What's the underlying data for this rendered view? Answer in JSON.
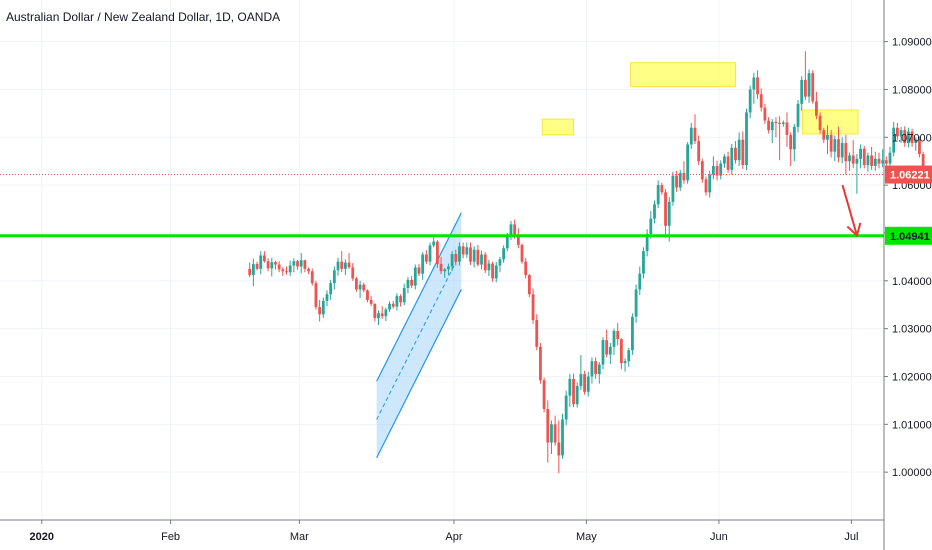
{
  "chart_data": {
    "type": "candlestick",
    "title": "Australian Dollar / New Zealand Dollar, 1D, OANDA",
    "y_ticks": [
      "1.09000",
      "1.08000",
      "1.07000",
      "1.06000",
      "1.05000",
      "1.04000",
      "1.03000",
      "1.02000",
      "1.01000",
      "1.00000"
    ],
    "y_tick_values": [
      1.09,
      1.08,
      1.07,
      1.06,
      1.05,
      1.04,
      1.03,
      1.02,
      1.01,
      1.0
    ],
    "ylim": [
      0.99,
      1.0987
    ],
    "x_ticks": [
      "2020",
      "Feb",
      "Mar",
      "Apr",
      "May",
      "Jun",
      "Jul"
    ],
    "x_tick_values": [
      11,
      46,
      81,
      123,
      159,
      195,
      231
    ],
    "n_bars": 252,
    "current_price": {
      "label": "1.06221",
      "value": 1.06221,
      "color": "#ef5350"
    },
    "support_level": {
      "label": "1.04941",
      "value": 1.04941,
      "color": "#00e600"
    },
    "colors": {
      "up": "#26a69a",
      "down": "#ef5350",
      "highlight": "#ffff66",
      "channel": "#2196f3"
    },
    "highlights": [
      {
        "x0": 147,
        "x1": 155.5,
        "y0": 1.0738,
        "y1": 1.0705
      },
      {
        "x0": 171,
        "x1": 199.5,
        "y0": 1.0856,
        "y1": 1.0806
      },
      {
        "x0": 217.7,
        "x1": 232.8,
        "y0": 1.0757,
        "y1": 1.0707
      }
    ],
    "channel": {
      "lower_start": [
        102,
        1.003
      ],
      "lower_end": [
        125,
        1.0382
      ],
      "offset": 0.016
    },
    "arrow": {
      "from": [
        228.6,
        1.06
      ],
      "to": [
        232.5,
        1.0495
      ]
    },
    "candles": [
      [
        1.0425,
        1.0438,
        1.0408,
        1.0412
      ],
      [
        1.0412,
        1.0446,
        1.0389,
        1.0435
      ],
      [
        1.0435,
        1.044,
        1.0422,
        1.0425
      ],
      [
        1.0425,
        1.0462,
        1.0414,
        1.0453
      ],
      [
        1.0453,
        1.0462,
        1.0438,
        1.0441
      ],
      [
        1.0441,
        1.0447,
        1.042,
        1.0426
      ],
      [
        1.0426,
        1.0448,
        1.0409,
        1.0439
      ],
      [
        1.0439,
        1.0442,
        1.0424,
        1.0434
      ],
      [
        1.0434,
        1.0441,
        1.0418,
        1.0424
      ],
      [
        1.0424,
        1.0429,
        1.041,
        1.042
      ],
      [
        1.042,
        1.043,
        1.0413,
        1.0418
      ],
      [
        1.0418,
        1.0442,
        1.041,
        1.0432
      ],
      [
        1.0432,
        1.0447,
        1.0418,
        1.0441
      ],
      [
        1.0441,
        1.0444,
        1.0423,
        1.043
      ],
      [
        1.043,
        1.0458,
        1.0416,
        1.0443
      ],
      [
        1.0443,
        1.0444,
        1.0418,
        1.0425
      ],
      [
        1.0425,
        1.0428,
        1.0414,
        1.042
      ],
      [
        1.042,
        1.0426,
        1.039,
        1.0395
      ],
      [
        1.0395,
        1.04,
        1.034,
        1.0345
      ],
      [
        1.0345,
        1.036,
        1.0315,
        1.033
      ],
      [
        1.033,
        1.0365,
        1.0322,
        1.0358
      ],
      [
        1.0358,
        1.038,
        1.0347,
        1.0372
      ],
      [
        1.0372,
        1.0402,
        1.036,
        1.0395
      ],
      [
        1.0395,
        1.043,
        1.0382,
        1.0422
      ],
      [
        1.0422,
        1.0448,
        1.0411,
        1.044
      ],
      [
        1.044,
        1.0462,
        1.0418,
        1.0425
      ],
      [
        1.0425,
        1.0445,
        1.0412,
        1.0438
      ],
      [
        1.0438,
        1.0458,
        1.0425,
        1.0428
      ],
      [
        1.0428,
        1.0437,
        1.04,
        1.0405
      ],
      [
        1.0405,
        1.0408,
        1.0377,
        1.0382
      ],
      [
        1.0382,
        1.04,
        1.0364,
        1.0392
      ],
      [
        1.0392,
        1.0396,
        1.0376,
        1.038
      ],
      [
        1.038,
        1.0382,
        1.0355,
        1.036
      ],
      [
        1.036,
        1.0368,
        1.0347,
        1.0352
      ],
      [
        1.0352,
        1.0353,
        1.0315,
        1.0322
      ],
      [
        1.0322,
        1.0338,
        1.0308,
        1.0332
      ],
      [
        1.0332,
        1.0347,
        1.032,
        1.0326
      ],
      [
        1.0326,
        1.0344,
        1.0316,
        1.034
      ],
      [
        1.034,
        1.0357,
        1.0335,
        1.0352
      ],
      [
        1.0352,
        1.0358,
        1.0342,
        1.0346
      ],
      [
        1.0346,
        1.0374,
        1.0338,
        1.0368
      ],
      [
        1.0368,
        1.0372,
        1.0346,
        1.0355
      ],
      [
        1.0355,
        1.0394,
        1.0349,
        1.0385
      ],
      [
        1.0385,
        1.0408,
        1.0374,
        1.0402
      ],
      [
        1.0402,
        1.041,
        1.0385,
        1.039
      ],
      [
        1.039,
        1.0434,
        1.0382,
        1.0428
      ],
      [
        1.0428,
        1.0435,
        1.041,
        1.0415
      ],
      [
        1.0415,
        1.046,
        1.0402,
        1.0455
      ],
      [
        1.0455,
        1.0464,
        1.0435,
        1.044
      ],
      [
        1.044,
        1.048,
        1.0432,
        1.0474
      ],
      [
        1.0474,
        1.0494,
        1.047,
        1.0482
      ],
      [
        1.0482,
        1.0485,
        1.0427,
        1.0435
      ],
      [
        1.0435,
        1.045,
        1.0414,
        1.042
      ],
      [
        1.042,
        1.0427,
        1.0406,
        1.0424
      ],
      [
        1.0424,
        1.0436,
        1.0412,
        1.043
      ],
      [
        1.043,
        1.0462,
        1.042,
        1.0456
      ],
      [
        1.0456,
        1.0465,
        1.0432,
        1.044
      ],
      [
        1.044,
        1.048,
        1.0432,
        1.0472
      ],
      [
        1.0472,
        1.048,
        1.0447,
        1.0455
      ],
      [
        1.0455,
        1.048,
        1.0448,
        1.047
      ],
      [
        1.047,
        1.048,
        1.0433,
        1.044
      ],
      [
        1.044,
        1.0472,
        1.0428,
        1.0465
      ],
      [
        1.0465,
        1.0475,
        1.043,
        1.0434
      ],
      [
        1.0434,
        1.0463,
        1.0424,
        1.0455
      ],
      [
        1.0455,
        1.046,
        1.0416,
        1.0422
      ],
      [
        1.0422,
        1.0444,
        1.041,
        1.0436
      ],
      [
        1.0436,
        1.044,
        1.0398,
        1.0405
      ],
      [
        1.0405,
        1.044,
        1.0397,
        1.0432
      ],
      [
        1.0432,
        1.045,
        1.0418,
        1.0445
      ],
      [
        1.0445,
        1.0474,
        1.0438,
        1.0468
      ],
      [
        1.0468,
        1.05,
        1.0462,
        1.0492
      ],
      [
        1.0492,
        1.0525,
        1.0485,
        1.0518
      ],
      [
        1.0518,
        1.0528,
        1.0488,
        1.0495
      ],
      [
        1.0495,
        1.051,
        1.0468,
        1.0475
      ],
      [
        1.0475,
        1.0478,
        1.0436,
        1.044
      ],
      [
        1.044,
        1.0448,
        1.0405,
        1.0412
      ],
      [
        1.0412,
        1.0414,
        1.0366,
        1.0372
      ],
      [
        1.0372,
        1.0384,
        1.031,
        1.0318
      ],
      [
        1.0318,
        1.033,
        1.0255,
        1.0262
      ],
      [
        1.0262,
        1.027,
        1.0185,
        1.0192
      ],
      [
        1.0192,
        1.0198,
        1.0125,
        1.0132
      ],
      [
        1.0132,
        1.015,
        1.002,
        1.0062
      ],
      [
        1.0062,
        1.0108,
        1.0038,
        1.01
      ],
      [
        1.01,
        1.0118,
        1.0055,
        1.0062
      ],
      [
        1.0062,
        1.0108,
        0.9998,
        1.0035
      ],
      [
        1.0035,
        1.0122,
        1.0028,
        1.011
      ],
      [
        1.011,
        1.017,
        1.0098,
        1.016
      ],
      [
        1.016,
        1.0205,
        1.0136,
        1.0195
      ],
      [
        1.0195,
        1.0206,
        1.0136,
        1.0142
      ],
      [
        1.0142,
        1.0188,
        1.0135,
        1.018
      ],
      [
        1.018,
        1.0245,
        1.0172,
        1.0205
      ],
      [
        1.0205,
        1.0212,
        1.0162,
        1.0168
      ],
      [
        1.0168,
        1.021,
        1.0158,
        1.02
      ],
      [
        1.02,
        1.024,
        1.0185,
        1.0232
      ],
      [
        1.0232,
        1.024,
        1.0195,
        1.0205
      ],
      [
        1.0205,
        1.023,
        1.0185,
        1.0225
      ],
      [
        1.0225,
        1.0282,
        1.0215,
        1.0276
      ],
      [
        1.0276,
        1.0298,
        1.024,
        1.0246
      ],
      [
        1.0246,
        1.027,
        1.0226,
        1.0262
      ],
      [
        1.0262,
        1.03,
        1.0245,
        1.0295
      ],
      [
        1.0295,
        1.0312,
        1.0265,
        1.0278
      ],
      [
        1.0278,
        1.028,
        1.0215,
        1.0228
      ],
      [
        1.0228,
        1.0238,
        1.021,
        1.0232
      ],
      [
        1.0232,
        1.026,
        1.022,
        1.0255
      ],
      [
        1.0255,
        1.0332,
        1.0245,
        1.0325
      ],
      [
        1.0325,
        1.0392,
        1.0312,
        1.0382
      ],
      [
        1.0382,
        1.043,
        1.037,
        1.0415
      ],
      [
        1.0415,
        1.047,
        1.0405,
        1.0462
      ],
      [
        1.0462,
        1.0508,
        1.0451,
        1.0498
      ],
      [
        1.0498,
        1.0546,
        1.0488,
        1.053
      ],
      [
        1.053,
        1.0568,
        1.052,
        1.056
      ],
      [
        1.056,
        1.061,
        1.0552,
        1.06
      ],
      [
        1.06,
        1.0605,
        1.058,
        1.0585
      ],
      [
        1.0585,
        1.0592,
        1.049,
        1.0515
      ],
      [
        1.0515,
        1.0575,
        1.0482,
        1.0565
      ],
      [
        1.0565,
        1.0628,
        1.0557,
        1.062
      ],
      [
        1.062,
        1.063,
        1.0586,
        1.0595
      ],
      [
        1.0595,
        1.0632,
        1.0588,
        1.0625
      ],
      [
        1.0625,
        1.065,
        1.0603,
        1.061
      ],
      [
        1.061,
        1.069,
        1.0603,
        1.0685
      ],
      [
        1.0685,
        1.073,
        1.0676,
        1.072
      ],
      [
        1.072,
        1.0748,
        1.0686,
        1.0692
      ],
      [
        1.0692,
        1.0704,
        1.0642,
        1.065
      ],
      [
        1.065,
        1.0655,
        1.0605,
        1.0612
      ],
      [
        1.0612,
        1.0618,
        1.0578,
        1.0585
      ],
      [
        1.0585,
        1.063,
        1.0574,
        1.0622
      ],
      [
        1.0622,
        1.066,
        1.0612,
        1.064
      ],
      [
        1.064,
        1.0651,
        1.061,
        1.062
      ],
      [
        1.062,
        1.0652,
        1.0612,
        1.0645
      ],
      [
        1.0645,
        1.0665,
        1.0636,
        1.066
      ],
      [
        1.066,
        1.067,
        1.0626,
        1.0632
      ],
      [
        1.0632,
        1.0686,
        1.0622,
        1.0678
      ],
      [
        1.0678,
        1.0692,
        1.0645,
        1.0652
      ],
      [
        1.0652,
        1.071,
        1.064,
        1.0695
      ],
      [
        1.0695,
        1.0712,
        1.0634,
        1.0642
      ],
      [
        1.0642,
        1.076,
        1.0632,
        1.0752
      ],
      [
        1.0752,
        1.0808,
        1.074,
        1.08
      ],
      [
        1.08,
        1.0835,
        1.077,
        1.0825
      ],
      [
        1.0825,
        1.084,
        1.078,
        1.079
      ],
      [
        1.079,
        1.0802,
        1.0754,
        1.0762
      ],
      [
        1.0762,
        1.077,
        1.0728,
        1.0735
      ],
      [
        1.0735,
        1.0742,
        1.0708,
        1.0715
      ],
      [
        1.0715,
        1.0738,
        1.0688,
        1.0732
      ],
      [
        1.0732,
        1.0742,
        1.07,
        1.073
      ],
      [
        1.073,
        1.0744,
        1.0652,
        1.0728
      ],
      [
        1.0728,
        1.0735,
        1.0722,
        1.0731
      ],
      [
        1.0731,
        1.0752,
        1.068,
        1.0705
      ],
      [
        1.0705,
        1.071,
        1.064,
        1.0675
      ],
      [
        1.0675,
        1.0728,
        1.065,
        1.0722
      ],
      [
        1.0722,
        1.0778,
        1.071,
        1.077
      ],
      [
        1.077,
        1.0828,
        1.0756,
        1.082
      ],
      [
        1.082,
        1.088,
        1.0778,
        1.0785
      ],
      [
        1.0785,
        1.0842,
        1.0772,
        1.0834
      ],
      [
        1.0834,
        1.084,
        1.077,
        1.0775
      ],
      [
        1.0775,
        1.0795,
        1.0738,
        1.0745
      ],
      [
        1.0745,
        1.0752,
        1.0708,
        1.0715
      ],
      [
        1.0715,
        1.072,
        1.0688,
        1.0695
      ],
      [
        1.0695,
        1.0725,
        1.0665,
        1.0705
      ],
      [
        1.0705,
        1.0715,
        1.0658,
        1.067
      ],
      [
        1.067,
        1.0704,
        1.065,
        1.0696
      ],
      [
        1.0696,
        1.0722,
        1.0648,
        1.0658
      ],
      [
        1.0658,
        1.07,
        1.0646,
        1.0688
      ],
      [
        1.0688,
        1.0705,
        1.0622,
        1.065
      ],
      [
        1.065,
        1.0668,
        1.063,
        1.0662
      ],
      [
        1.0662,
        1.0694,
        1.0636,
        1.0645
      ],
      [
        1.0645,
        1.0665,
        1.0582,
        1.0655
      ],
      [
        1.0655,
        1.0685,
        1.0635,
        1.0676
      ],
      [
        1.0676,
        1.0682,
        1.0635,
        1.0642
      ],
      [
        1.0642,
        1.0668,
        1.0628,
        1.0662
      ],
      [
        1.0662,
        1.068,
        1.0632,
        1.064
      ],
      [
        1.064,
        1.067,
        1.063,
        1.0655
      ],
      [
        1.0655,
        1.0668,
        1.0635,
        1.0645
      ],
      [
        1.0645,
        1.0675,
        1.0637,
        1.0652
      ],
      [
        1.0652,
        1.066,
        1.0638,
        1.0645
      ],
      [
        1.0645,
        1.068,
        1.063,
        1.0668
      ],
      [
        1.0668,
        1.0732,
        1.066,
        1.072
      ],
      [
        1.072,
        1.073,
        1.0695,
        1.0702
      ],
      [
        1.0702,
        1.0722,
        1.0688,
        1.0715
      ],
      [
        1.0715,
        1.0723,
        1.068,
        1.0688
      ],
      [
        1.0688,
        1.072,
        1.0679,
        1.0712
      ],
      [
        1.0712,
        1.0718,
        1.068,
        1.0688
      ],
      [
        1.0688,
        1.07,
        1.0672,
        1.0695
      ],
      [
        1.0695,
        1.0702,
        1.0658,
        1.0665
      ],
      [
        1.0665,
        1.067,
        1.0618,
        1.0625
      ],
      [
        1.0625,
        1.063,
        1.0605,
        1.0622
      ]
    ],
    "candle_start_index": 0
  }
}
